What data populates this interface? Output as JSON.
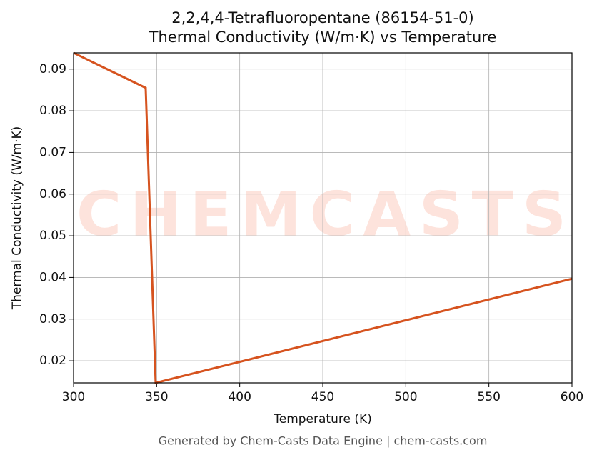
{
  "chart_data": {
    "type": "line",
    "title": "2,2,4,4-Tetrafluoropentane (86154-51-0)",
    "subtitle": "Thermal Conductivity (W/m·K) vs Temperature",
    "x_label": "Temperature (K)",
    "y_label": "Thermal Conductivity (W/m·K)",
    "footer": "Generated by Chem-Casts Data Engine | chem-casts.com",
    "watermark": "CHEMCASTS",
    "x": [
      300,
      343.4,
      349.4,
      600
    ],
    "series": [
      {
        "name": "Thermal Conductivity",
        "color": "#d6531f",
        "values": [
          0.0939,
          0.0855,
          0.0147,
          0.0397
        ]
      }
    ],
    "xlim": [
      300,
      600
    ],
    "ylim": [
      0.0147,
      0.0939
    ],
    "xticks": [
      300,
      350,
      400,
      450,
      500,
      550,
      600
    ],
    "yticks": [
      0.02,
      0.03,
      0.04,
      0.05,
      0.06,
      0.07,
      0.08,
      0.09
    ],
    "grid": true
  }
}
